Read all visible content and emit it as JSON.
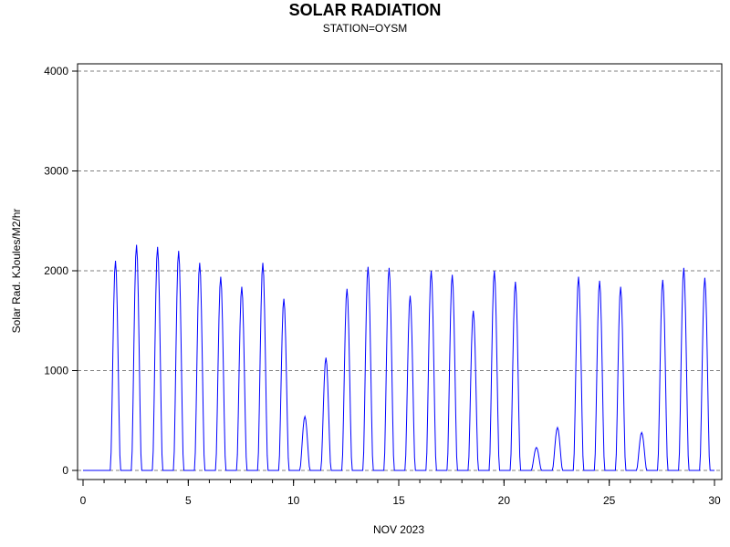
{
  "chart_data": {
    "type": "line",
    "title": "SOLAR RADIATION",
    "subtitle": "STATION=OYSM",
    "xlabel": "NOV 2023",
    "ylabel": "Solar Rad. KJoules/M2/hr",
    "xlim": [
      0,
      30
    ],
    "ylim": [
      0,
      4000
    ],
    "x_ticks": [
      0,
      5,
      10,
      15,
      20,
      25,
      30
    ],
    "x_tick_labels": [
      "0",
      "5",
      "10",
      "15",
      "20",
      "25",
      "30"
    ],
    "y_ticks": [
      0,
      1000,
      2000,
      3000,
      4000
    ],
    "y_tick_labels": [
      "0",
      "1000",
      "2000",
      "3000",
      "4000"
    ],
    "grid": "horizontal-dashed",
    "line_color": "#0000ff",
    "daily_peaks": [
      {
        "day": 1,
        "peak": 2100
      },
      {
        "day": 2,
        "peak": 2260
      },
      {
        "day": 3,
        "peak": 2240
      },
      {
        "day": 4,
        "peak": 2200
      },
      {
        "day": 5,
        "peak": 2080
      },
      {
        "day": 6,
        "peak": 1940
      },
      {
        "day": 7,
        "peak": 1840
      },
      {
        "day": 8,
        "peak": 2080
      },
      {
        "day": 9,
        "peak": 1720
      },
      {
        "day": 10,
        "peak": 540
      },
      {
        "day": 11,
        "peak": 1130
      },
      {
        "day": 12,
        "peak": 1820
      },
      {
        "day": 13,
        "peak": 2040
      },
      {
        "day": 14,
        "peak": 2030
      },
      {
        "day": 15,
        "peak": 1750
      },
      {
        "day": 16,
        "peak": 2000
      },
      {
        "day": 17,
        "peak": 1960
      },
      {
        "day": 18,
        "peak": 1600
      },
      {
        "day": 19,
        "peak": 2000
      },
      {
        "day": 20,
        "peak": 1890
      },
      {
        "day": 21,
        "peak": 230
      },
      {
        "day": 22,
        "peak": 430
      },
      {
        "day": 23,
        "peak": 1940
      },
      {
        "day": 24,
        "peak": 1900
      },
      {
        "day": 25,
        "peak": 1840
      },
      {
        "day": 26,
        "peak": 380
      },
      {
        "day": 27,
        "peak": 1910
      },
      {
        "day": 28,
        "peak": 2030
      },
      {
        "day": 29,
        "peak": 1930
      }
    ]
  }
}
